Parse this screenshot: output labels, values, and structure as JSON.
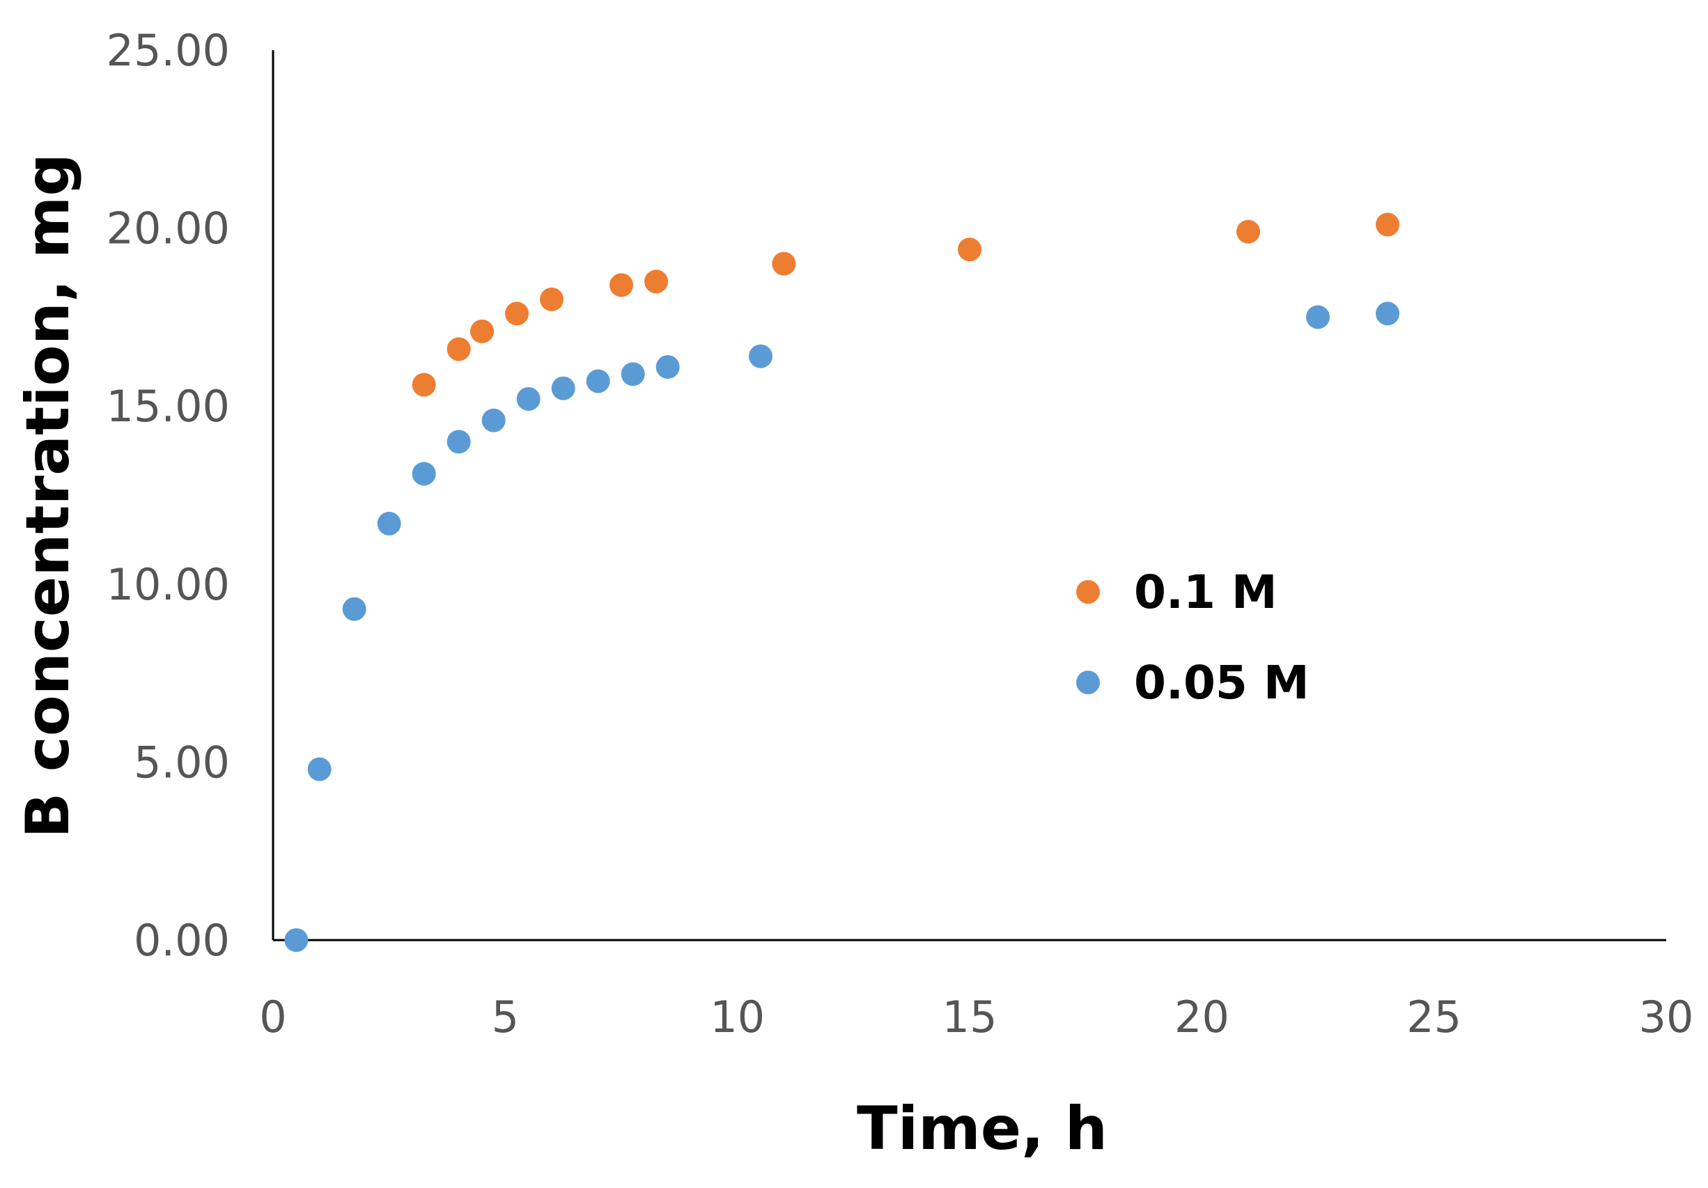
{
  "chart_data": {
    "type": "scatter",
    "xlabel": "Time, h",
    "ylabel": "B concentration, mg",
    "xlim": [
      0,
      30
    ],
    "ylim": [
      0,
      25
    ],
    "x_ticks": [
      "0",
      "5",
      "10",
      "15",
      "20",
      "25",
      "30"
    ],
    "x_tick_values": [
      0,
      5,
      10,
      15,
      20,
      25,
      30
    ],
    "y_ticks": [
      "0.00",
      "5.00",
      "10.00",
      "15.00",
      "20.00",
      "25.00"
    ],
    "y_tick_values": [
      0,
      5,
      10,
      15,
      20,
      25
    ],
    "grid": false,
    "legend_position": "right-center",
    "series": [
      {
        "name": "0.1 M",
        "color": "#ED7D31",
        "x": [
          3.25,
          4.0,
          4.5,
          5.25,
          6.0,
          7.5,
          8.25,
          11.0,
          15.0,
          21.0,
          24.0
        ],
        "y": [
          15.6,
          16.6,
          17.1,
          17.6,
          18.0,
          18.4,
          18.5,
          19.0,
          19.4,
          19.9,
          20.1
        ]
      },
      {
        "name": "0.05 M",
        "color": "#5B9BD5",
        "x": [
          0.5,
          1.0,
          1.75,
          2.5,
          3.25,
          4.0,
          4.75,
          5.5,
          6.25,
          7.0,
          7.75,
          8.5,
          10.5,
          22.5,
          24.0
        ],
        "y": [
          0.0,
          4.8,
          9.3,
          11.7,
          13.1,
          14.0,
          14.6,
          15.2,
          15.5,
          15.7,
          15.9,
          16.1,
          16.4,
          17.5,
          17.6
        ]
      }
    ]
  }
}
